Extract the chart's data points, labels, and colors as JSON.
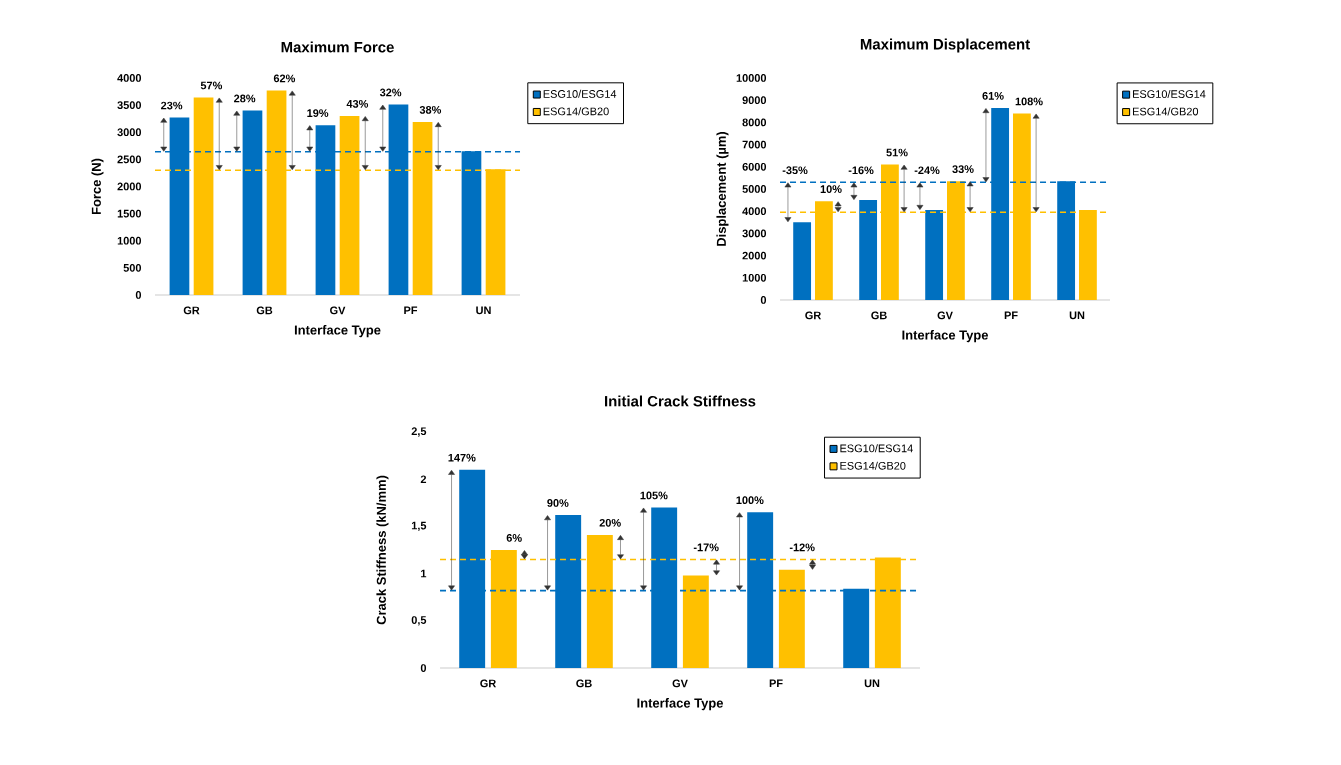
{
  "chart_data": [
    {
      "type": "bar",
      "title": "Maximum Force",
      "xlabel": "Interface Type",
      "ylabel": "Force (N)",
      "categories": [
        "GR",
        "GB",
        "GV",
        "PF",
        "UN"
      ],
      "series": [
        {
          "name": "ESG10/ESG14",
          "color": "#0070c0",
          "values": [
            3270,
            3400,
            3130,
            3510,
            2650
          ]
        },
        {
          "name": "ESG14/GB20",
          "color": "#ffc000",
          "values": [
            3640,
            3770,
            3300,
            3190,
            2320
          ]
        }
      ],
      "annotations": [
        {
          "text": "23%",
          "x": "GR",
          "y": 3270
        },
        {
          "text": "57%",
          "x": "GR",
          "y": 3640
        },
        {
          "text": "28%",
          "x": "GB",
          "y": 3400
        },
        {
          "text": "62%",
          "x": "GB",
          "y": 3770
        },
        {
          "text": "19%",
          "x": "GV",
          "y": 3130
        },
        {
          "text": "43%",
          "x": "GV",
          "y": 3300
        },
        {
          "text": "32%",
          "x": "PF",
          "y": 3510
        },
        {
          "text": "38%",
          "x": "PF",
          "y": 3190
        }
      ],
      "ref_lines": [
        {
          "axis": "y",
          "value": 2640,
          "color": "#0070c0",
          "line_style": "dashed"
        },
        {
          "axis": "y",
          "value": 2300,
          "color": "#ffc000",
          "line_style": "dashed"
        }
      ],
      "ylim": [
        0,
        4000
      ],
      "yticks": [
        0,
        500,
        1000,
        1500,
        2000,
        2500,
        3000,
        3500,
        4000
      ],
      "grid": false,
      "legend": "top right"
    },
    {
      "type": "bar",
      "title": "Maximum Displacement",
      "xlabel": "Interface Type",
      "ylabel": "Displacement (µm)",
      "categories": [
        "GR",
        "GB",
        "GV",
        "PF",
        "UN"
      ],
      "series": [
        {
          "name": "ESG10/ESG14",
          "color": "#0070c0",
          "values": [
            3500,
            4500,
            4050,
            8650,
            5350
          ]
        },
        {
          "name": "ESG14/GB20",
          "color": "#ffc000",
          "values": [
            4450,
            6100,
            5350,
            8400,
            4050
          ]
        }
      ],
      "annotations": [
        {
          "text": "-35%",
          "x": "GR",
          "y": 5300
        },
        {
          "text": "10%",
          "x": "GR",
          "y": 4450
        },
        {
          "text": "-16%",
          "x": "GB",
          "y": 5300
        },
        {
          "text": "51%",
          "x": "GB",
          "y": 6100
        },
        {
          "text": "-24%",
          "x": "GV",
          "y": 5300
        },
        {
          "text": "33%",
          "x": "GV",
          "y": 5350
        },
        {
          "text": "61%",
          "x": "PF",
          "y": 8650
        },
        {
          "text": "108%",
          "x": "PF",
          "y": 8400
        }
      ],
      "ref_lines": [
        {
          "axis": "y",
          "value": 5300,
          "color": "#0070c0",
          "line_style": "dashed"
        },
        {
          "axis": "y",
          "value": 3950,
          "color": "#ffc000",
          "line_style": "dashed"
        }
      ],
      "ylim": [
        0,
        10000
      ],
      "yticks": [
        0,
        1000,
        2000,
        3000,
        4000,
        5000,
        6000,
        7000,
        8000,
        9000,
        10000
      ],
      "grid": false,
      "legend": "top right"
    },
    {
      "type": "bar",
      "title": "Initial Crack Stiffness",
      "xlabel": "Interface Type",
      "ylabel": "Crack Stiffness (kN/mm)",
      "categories": [
        "GR",
        "GB",
        "GV",
        "PF",
        "UN"
      ],
      "series": [
        {
          "name": "ESG10/ESG14",
          "color": "#0070c0",
          "values": [
            2.1,
            1.62,
            1.7,
            1.65,
            0.84
          ]
        },
        {
          "name": "ESG14/GB20",
          "color": "#ffc000",
          "values": [
            1.25,
            1.41,
            0.98,
            1.04,
            1.17
          ]
        }
      ],
      "annotations": [
        {
          "text": "147%",
          "x": "GR",
          "y": 2.1
        },
        {
          "text": "6%",
          "x": "GR",
          "y": 1.25
        },
        {
          "text": "90%",
          "x": "GB",
          "y": 1.62
        },
        {
          "text": "20%",
          "x": "GB",
          "y": 1.41
        },
        {
          "text": "105%",
          "x": "GV",
          "y": 1.7
        },
        {
          "text": "-17%",
          "x": "GV",
          "y": 1.15
        },
        {
          "text": "100%",
          "x": "PF",
          "y": 1.65
        },
        {
          "text": "-12%",
          "x": "PF",
          "y": 1.15
        }
      ],
      "ref_lines": [
        {
          "axis": "y",
          "value": 0.82,
          "color": "#0070c0",
          "line_style": "dashed"
        },
        {
          "axis": "y",
          "value": 1.15,
          "color": "#ffc000",
          "line_style": "dashed"
        }
      ],
      "ylim": [
        0,
        2.5
      ],
      "yticks": [
        0,
        {
          "value": 0.5,
          "label": "0,5"
        },
        1,
        {
          "value": 1.5,
          "label": "1,5"
        },
        2,
        {
          "value": 2.5,
          "label": "2,5"
        }
      ],
      "grid": false,
      "legend": "top right"
    }
  ]
}
